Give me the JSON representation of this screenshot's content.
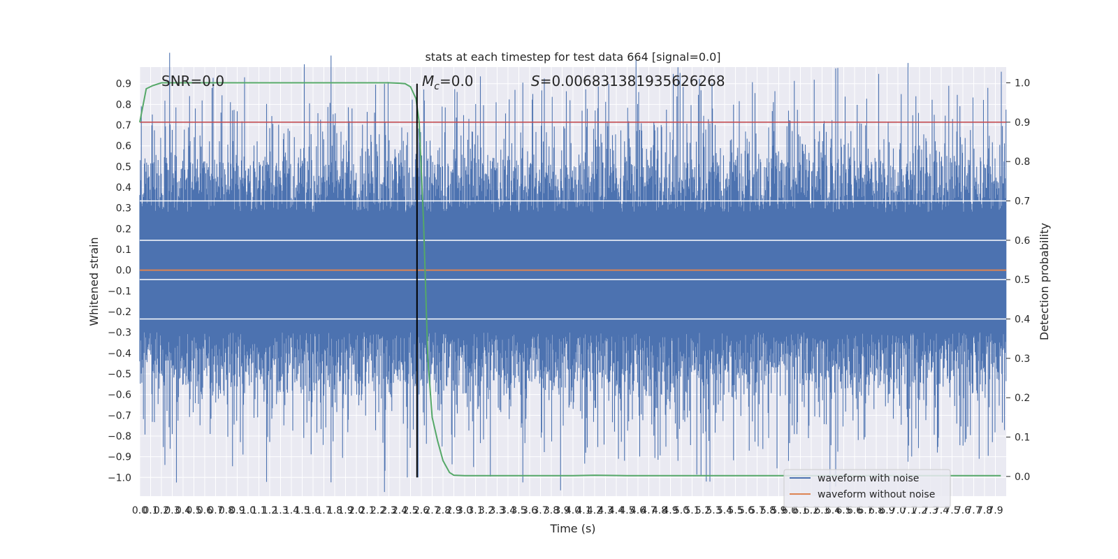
{
  "chart_data": {
    "type": "line",
    "title": "stats at each timestep for test data 664 [signal=0.0]",
    "xlabel": "Time (s)",
    "ylabel": "Whitened strain",
    "y2label": "Detection probability",
    "xlim": [
      0.0,
      8.0
    ],
    "ylim": [
      -1.09,
      0.98
    ],
    "y2lim": [
      -0.05,
      1.04
    ],
    "grid": true,
    "x_ticks": [
      "0.0",
      "0.1",
      "0.2",
      "0.3",
      "0.4",
      "0.5",
      "0.6",
      "0.7",
      "0.8",
      "0.9",
      "1.0",
      "1.1",
      "1.2",
      "1.3",
      "1.4",
      "1.5",
      "1.6",
      "1.7",
      "1.8",
      "1.9",
      "2.0",
      "2.1",
      "2.2",
      "2.3",
      "2.4",
      "2.5",
      "2.6",
      "2.7",
      "2.8",
      "2.9",
      "3.0",
      "3.1",
      "3.2",
      "3.3",
      "3.4",
      "3.5",
      "3.6",
      "3.7",
      "3.8",
      "3.9",
      "4.0",
      "4.1",
      "4.2",
      "4.3",
      "4.4",
      "4.5",
      "4.6",
      "4.7",
      "4.8",
      "4.9",
      "5.0",
      "5.1",
      "5.2",
      "5.3",
      "5.4",
      "5.5",
      "5.6",
      "5.7",
      "5.8",
      "5.9",
      "6.0",
      "6.1",
      "6.2",
      "6.3",
      "6.4",
      "6.5",
      "6.6",
      "6.7",
      "6.8",
      "6.9",
      "7.0",
      "7.1",
      "7.2",
      "7.3",
      "7.4",
      "7.5",
      "7.6",
      "7.7",
      "7.8",
      "7.9"
    ],
    "y_ticks": [
      "0.9",
      "0.8",
      "0.7",
      "0.6",
      "0.5",
      "0.4",
      "0.3",
      "0.2",
      "0.1",
      "0.0",
      "−0.1",
      "−0.2",
      "−0.3",
      "−0.4",
      "−0.5",
      "−0.6",
      "−0.7",
      "−0.8",
      "−0.9",
      "−1.0"
    ],
    "y2_ticks": [
      "1.0",
      "0.9",
      "0.8",
      "0.7",
      "0.6",
      "0.5",
      "0.4",
      "0.3",
      "0.2",
      "0.1",
      "0.0"
    ],
    "annotations": {
      "snr": "SNR=0.0",
      "mc_symbol": "M",
      "mc_sub": "c",
      "mc_value": "=0.0",
      "s_symbol": "S",
      "s_value": "=0.006831381935626268"
    },
    "series": [
      {
        "name": "waveform with noise",
        "color": "#4c72b0",
        "description": "noisy whitened strain samples spanning roughly −1.0 to 0.9 over 0–8 s",
        "envelope_peaks": [
          [
            0.46,
            0.84
          ],
          [
            1.96,
            0.78
          ],
          [
            2.93,
            0.86
          ],
          [
            3.29,
            0.81
          ],
          [
            7.47,
            0.89
          ],
          [
            7.83,
            0.88
          ]
        ],
        "envelope_troughs": [
          [
            0.65,
            -0.79
          ],
          [
            2.47,
            -1.0
          ],
          [
            2.57,
            -1.0
          ],
          [
            4.42,
            -0.91
          ],
          [
            5.99,
            -0.92
          ],
          [
            7.75,
            -0.91
          ]
        ]
      },
      {
        "name": "waveform without noise",
        "color": "#dd8452",
        "values_constant": 0.0
      },
      {
        "name": "detection probability",
        "color": "#55a868",
        "axis": "right",
        "x": [
          0.0,
          0.06,
          0.12,
          0.2,
          0.5,
          1.0,
          1.5,
          2.0,
          2.3,
          2.4,
          2.45,
          2.5,
          2.55,
          2.58,
          2.62,
          2.66,
          2.7,
          2.75,
          2.8,
          2.86,
          2.9,
          3.0,
          3.3,
          4.0,
          4.2,
          4.5,
          5.0,
          6.0,
          7.0,
          7.95
        ],
        "y": [
          0.9,
          0.985,
          0.993,
          1.0,
          1.0,
          1.0,
          1.0,
          1.0,
          1.0,
          0.999,
          0.998,
          0.99,
          0.96,
          0.9,
          0.65,
          0.3,
          0.15,
          0.09,
          0.04,
          0.01,
          0.003,
          0.002,
          0.002,
          0.002,
          0.003,
          0.002,
          0.002,
          0.002,
          0.002,
          0.002
        ]
      },
      {
        "name": "threshold",
        "color": "#c44e52",
        "axis": "right",
        "value": 0.9
      },
      {
        "name": "marker",
        "color": "#000000",
        "x": 2.56
      }
    ],
    "white_bands_right": [
      0.4,
      0.5,
      0.6,
      0.7
    ],
    "legend": {
      "placement": "bottom-right",
      "entries": [
        {
          "label": "waveform with noise",
          "color": "#4c72b0"
        },
        {
          "label": "waveform without noise",
          "color": "#dd8452"
        }
      ]
    }
  }
}
